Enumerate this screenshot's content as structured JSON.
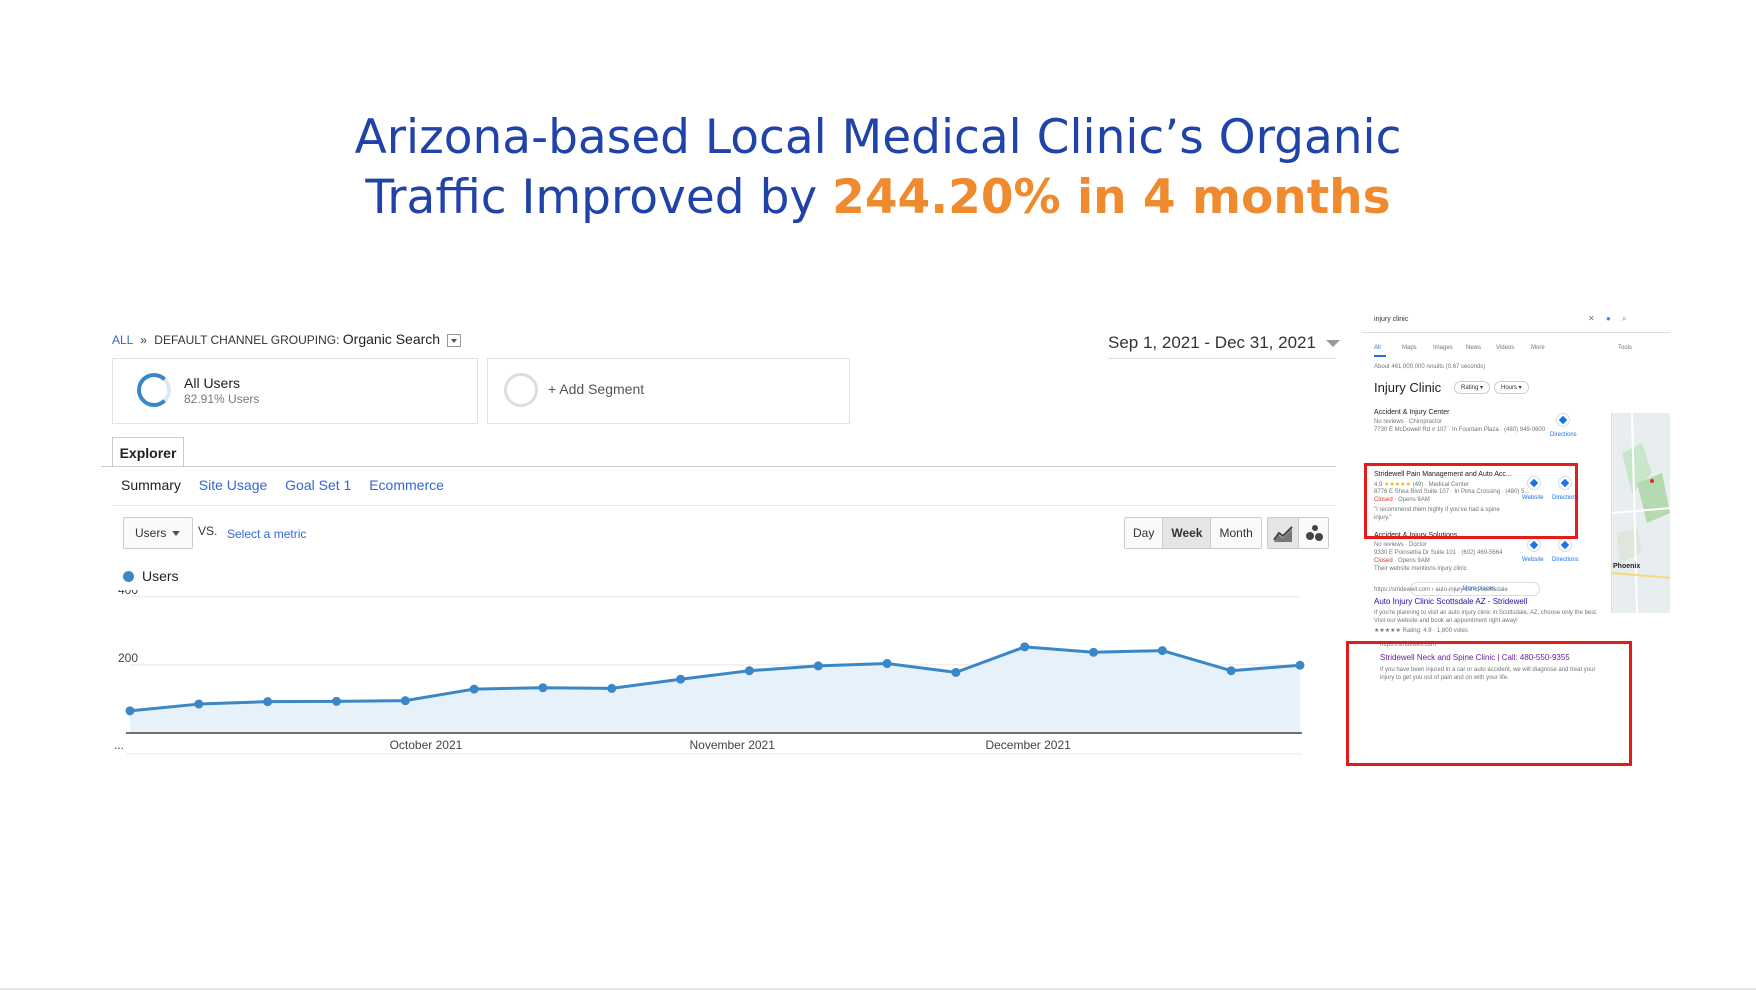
{
  "headline": {
    "line1": "Arizona-based Local Medical Clinic’s Organic",
    "line2_prefix": "Traffic Improved by ",
    "line2_highlight": "244.20% in 4 months"
  },
  "colors": {
    "headline": "#1f43a8",
    "highlight": "#ef8a2e",
    "series": "#3a87c7",
    "area": "#e7f1fa",
    "highlight_box": "#e21b1b"
  },
  "analytics": {
    "breadcrumb": {
      "all": "ALL",
      "sep": "»",
      "label": "DEFAULT CHANNEL GROUPING:",
      "value": "Organic Search"
    },
    "date_range": "Sep 1, 2021 - Dec 31, 2021",
    "segments": [
      {
        "name": "All Users",
        "sub": "82.91% Users"
      },
      {
        "name": "+ Add Segment"
      }
    ],
    "explorer_tab": "Explorer",
    "subtabs": [
      "Summary",
      "Site Usage",
      "Goal Set 1",
      "Ecommerce"
    ],
    "metric_select": "Users",
    "vs": "VS.",
    "select_metric": "Select a metric",
    "period_buttons": [
      "Day",
      "Week",
      "Month"
    ],
    "active_period": "Week",
    "view_icons": [
      "line-chart-icon",
      "motion-chart-icon"
    ]
  },
  "chart_data": {
    "type": "area",
    "series": [
      {
        "name": "Users",
        "values": [
          65,
          85,
          92,
          93,
          95,
          129,
          133,
          131,
          158,
          183,
          197,
          204,
          178,
          253,
          237,
          242,
          183,
          199
        ]
      }
    ],
    "ylim": [
      0,
      420
    ],
    "yticks": [
      200,
      400
    ],
    "x_labels": [
      "...",
      "October 2021",
      "November 2021",
      "December 2021"
    ],
    "x_label_positions": [
      0,
      4.3,
      8.75,
      13.05
    ],
    "grid": "horizontal"
  },
  "serp": {
    "query": "injury clinic",
    "tabs": [
      "All",
      "Maps",
      "Images",
      "News",
      "Videos",
      "More",
      "Tools"
    ],
    "result_stats": "About 461,000,000 results (0.67 seconds)",
    "local_title": "Injury Clinic",
    "filters": [
      "Rating",
      "Hours"
    ],
    "places": [
      {
        "name": "Accident & Injury Center",
        "meta": "No reviews · Chiropractor",
        "addr": "7730 E McDowell Rd # 107 · In Fountain Plaza · (480) 949-0600",
        "actions": [
          "Directions"
        ]
      },
      {
        "name": "Stridewell Pain Management and Auto Acc...",
        "rating": "4.9",
        "stars": "★★★★★",
        "meta": "(49) · Medical Center",
        "addr": "8776 E Shea Blvd Suite 107 · In Pima Crossing · (480) 5...",
        "status": "Closed",
        "opens": "· Opens 8AM",
        "review": "\"I recommend them highly if you've had a spine injury.\"",
        "actions": [
          "Website",
          "Directions"
        ]
      },
      {
        "name": "Accident & Injury Solutions",
        "meta": "No reviews · Doctor",
        "addr": "9330 E Poinsettia Dr Suite 101 · (602) 469-5664",
        "status": "Closed",
        "opens": "· Opens 9AM",
        "review": "Their website mentions injury clinic",
        "actions": [
          "Website",
          "Directions"
        ]
      }
    ],
    "more_places": "More places",
    "map_labels": [
      "Phoenix"
    ],
    "organic": [
      {
        "url": "https://stridewell.com › auto-injury-clinic-scottsdale",
        "title": "Auto Injury Clinic Scottsdale AZ - Stridewell",
        "snippet": "If you're planning to visit an auto injury clinic in Scottsdale, AZ, choose only the best. Visit our website and book an appointment right away!",
        "rating": "★★★★★ Rating: 4.9 · 1,800 votes"
      },
      {
        "url": "https://stridewell.com",
        "title": "Stridewell Neck and Spine Clinic | Call: 480-550-9355",
        "snippet": "If you have been injured in a car or auto accident, we will diagnose and treat your injury to get you out of pain and on with your life."
      }
    ]
  }
}
